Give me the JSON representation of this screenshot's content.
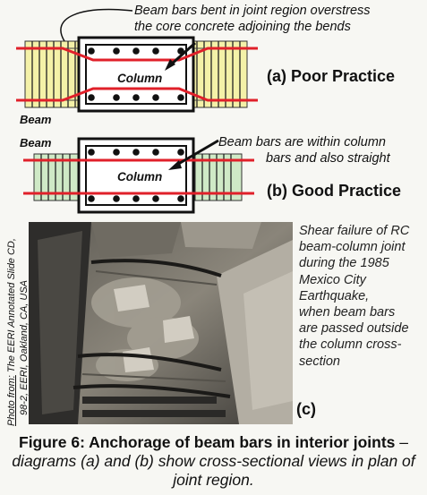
{
  "diagram_a": {
    "annotation_line1": "Beam bars bent in joint region overstress",
    "annotation_line2": "the core concrete adjoining the bends",
    "beam_label": "Beam",
    "column_label": "Column",
    "practice_label": "(a) Poor Practice"
  },
  "diagram_b": {
    "beam_label": "Beam",
    "annotation_line1": "Beam bars are within column",
    "annotation_line2": "bars and also straight",
    "column_label": "Column",
    "practice_label": "(b) Good Practice"
  },
  "photo": {
    "credit_prefix": "Photo from:",
    "credit_line1": "The EERI Annotated Slide CD,",
    "credit_line2": "98-2, EERI, Oakland, CA, USA",
    "label": "(c)",
    "description_lines": [
      "Shear failure of RC",
      "beam-column joint",
      "during the 1985",
      "Mexico City",
      "Earthquake,",
      "when beam bars",
      "are passed outside",
      "the column cross-",
      "section"
    ]
  },
  "caption": {
    "bold_part": "Figure 6: Anchorage of beam bars in interior joints",
    "dash": " – ",
    "italic_part": "diagrams (a) and (b) show cross-sectional views in plan of joint region."
  },
  "colors": {
    "beam_fill_a": "#f4f1a8",
    "beam_fill_b": "#cfe9c6",
    "bar_red": "#e0202a",
    "frame": "#111111"
  }
}
